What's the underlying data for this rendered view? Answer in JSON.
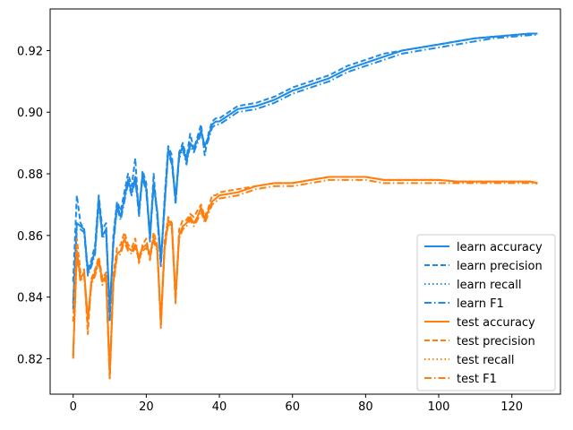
{
  "chart_data": {
    "type": "line",
    "title": "",
    "xlabel": "",
    "ylabel": "",
    "xlim": [
      -6.3,
      133.3
    ],
    "ylim": [
      0.8085,
      0.9335
    ],
    "x_ticks": [
      0,
      20,
      40,
      60,
      80,
      100,
      120
    ],
    "y_ticks": [
      0.82,
      0.84,
      0.86,
      0.88,
      0.9,
      0.92
    ],
    "y_tick_labels": [
      "0.82",
      "0.84",
      "0.86",
      "0.88",
      "0.90",
      "0.92"
    ],
    "grid": false,
    "legend_position": "lower right",
    "x": [
      0,
      1,
      2,
      3,
      4,
      5,
      6,
      7,
      8,
      9,
      10,
      11,
      12,
      13,
      14,
      15,
      16,
      17,
      18,
      19,
      20,
      21,
      22,
      23,
      24,
      25,
      26,
      27,
      28,
      29,
      30,
      31,
      32,
      33,
      34,
      35,
      36,
      37,
      38,
      39,
      40,
      45,
      50,
      55,
      60,
      65,
      70,
      75,
      80,
      85,
      90,
      95,
      100,
      105,
      110,
      115,
      120,
      125,
      127
    ],
    "series": [
      {
        "name": "learn accuracy",
        "color": "#1f8be8",
        "dash": "solid",
        "values": [
          0.838,
          0.864,
          0.863,
          0.862,
          0.848,
          0.851,
          0.855,
          0.872,
          0.86,
          0.862,
          0.836,
          0.858,
          0.87,
          0.866,
          0.872,
          0.878,
          0.874,
          0.879,
          0.868,
          0.88,
          0.875,
          0.86,
          0.877,
          0.868,
          0.852,
          0.87,
          0.888,
          0.884,
          0.872,
          0.886,
          0.889,
          0.884,
          0.89,
          0.888,
          0.891,
          0.894,
          0.889,
          0.892,
          0.896,
          0.897,
          0.897,
          0.901,
          0.902,
          0.904,
          0.907,
          0.909,
          0.911,
          0.914,
          0.916,
          0.918,
          0.92,
          0.921,
          0.922,
          0.923,
          0.924,
          0.9245,
          0.925,
          0.9255,
          0.9255
        ]
      },
      {
        "name": "learn precision",
        "color": "#1f8be8",
        "dash": "dashed",
        "values": [
          0.845,
          0.873,
          0.864,
          0.862,
          0.849,
          0.852,
          0.857,
          0.873,
          0.862,
          0.864,
          0.832,
          0.86,
          0.871,
          0.868,
          0.874,
          0.88,
          0.876,
          0.885,
          0.866,
          0.881,
          0.877,
          0.858,
          0.88,
          0.866,
          0.85,
          0.872,
          0.889,
          0.886,
          0.87,
          0.887,
          0.89,
          0.885,
          0.893,
          0.888,
          0.892,
          0.896,
          0.886,
          0.893,
          0.897,
          0.898,
          0.898,
          0.902,
          0.903,
          0.905,
          0.908,
          0.91,
          0.912,
          0.915,
          0.917,
          0.919,
          0.92,
          0.921,
          0.922,
          0.923,
          0.924,
          0.9245,
          0.925,
          0.9255,
          0.9255
        ]
      },
      {
        "name": "learn recall",
        "color": "#1f8be8",
        "dash": "dotted",
        "values": [
          0.838,
          0.864,
          0.863,
          0.862,
          0.848,
          0.851,
          0.855,
          0.872,
          0.86,
          0.862,
          0.836,
          0.858,
          0.87,
          0.866,
          0.872,
          0.878,
          0.874,
          0.879,
          0.868,
          0.88,
          0.875,
          0.86,
          0.877,
          0.868,
          0.852,
          0.87,
          0.888,
          0.884,
          0.872,
          0.886,
          0.889,
          0.884,
          0.89,
          0.888,
          0.891,
          0.894,
          0.889,
          0.892,
          0.896,
          0.897,
          0.897,
          0.901,
          0.902,
          0.904,
          0.907,
          0.909,
          0.911,
          0.914,
          0.916,
          0.918,
          0.92,
          0.921,
          0.922,
          0.923,
          0.924,
          0.9245,
          0.925,
          0.9255,
          0.9255
        ]
      },
      {
        "name": "learn F1",
        "color": "#1f8be8",
        "dash": "dashdot",
        "values": [
          0.836,
          0.862,
          0.862,
          0.861,
          0.847,
          0.85,
          0.854,
          0.871,
          0.859,
          0.861,
          0.834,
          0.857,
          0.869,
          0.865,
          0.871,
          0.877,
          0.873,
          0.878,
          0.867,
          0.879,
          0.874,
          0.859,
          0.876,
          0.867,
          0.851,
          0.869,
          0.887,
          0.883,
          0.871,
          0.885,
          0.888,
          0.883,
          0.889,
          0.887,
          0.89,
          0.893,
          0.888,
          0.891,
          0.895,
          0.896,
          0.896,
          0.9,
          0.901,
          0.903,
          0.906,
          0.908,
          0.91,
          0.913,
          0.915,
          0.917,
          0.919,
          0.92,
          0.921,
          0.922,
          0.923,
          0.924,
          0.9245,
          0.925,
          0.9252
        ]
      },
      {
        "name": "test accuracy",
        "color": "#ff7f0e",
        "dash": "solid",
        "values": [
          0.821,
          0.855,
          0.846,
          0.848,
          0.833,
          0.845,
          0.848,
          0.852,
          0.845,
          0.847,
          0.815,
          0.845,
          0.854,
          0.855,
          0.859,
          0.856,
          0.855,
          0.857,
          0.853,
          0.856,
          0.857,
          0.854,
          0.859,
          0.856,
          0.832,
          0.856,
          0.865,
          0.863,
          0.84,
          0.86,
          0.863,
          0.864,
          0.866,
          0.864,
          0.866,
          0.869,
          0.865,
          0.868,
          0.871,
          0.872,
          0.873,
          0.874,
          0.876,
          0.877,
          0.877,
          0.878,
          0.879,
          0.879,
          0.879,
          0.878,
          0.878,
          0.878,
          0.878,
          0.8775,
          0.8775,
          0.8775,
          0.8775,
          0.8775,
          0.877
        ]
      },
      {
        "name": "test precision",
        "color": "#ff7f0e",
        "dash": "dashed",
        "values": [
          0.832,
          0.859,
          0.848,
          0.849,
          0.828,
          0.846,
          0.849,
          0.853,
          0.846,
          0.848,
          0.814,
          0.847,
          0.856,
          0.857,
          0.861,
          0.857,
          0.856,
          0.859,
          0.851,
          0.857,
          0.859,
          0.852,
          0.861,
          0.857,
          0.83,
          0.858,
          0.866,
          0.864,
          0.838,
          0.862,
          0.865,
          0.865,
          0.867,
          0.866,
          0.868,
          0.87,
          0.866,
          0.869,
          0.873,
          0.873,
          0.874,
          0.875,
          0.876,
          0.877,
          0.877,
          0.878,
          0.879,
          0.879,
          0.879,
          0.878,
          0.878,
          0.878,
          0.878,
          0.8775,
          0.8775,
          0.8775,
          0.8775,
          0.8775,
          0.877
        ]
      },
      {
        "name": "test recall",
        "color": "#ff7f0e",
        "dash": "dotted",
        "values": [
          0.821,
          0.855,
          0.846,
          0.848,
          0.833,
          0.845,
          0.848,
          0.852,
          0.845,
          0.847,
          0.815,
          0.845,
          0.854,
          0.855,
          0.859,
          0.856,
          0.855,
          0.857,
          0.853,
          0.856,
          0.857,
          0.854,
          0.859,
          0.856,
          0.832,
          0.856,
          0.865,
          0.863,
          0.84,
          0.86,
          0.863,
          0.864,
          0.866,
          0.864,
          0.866,
          0.869,
          0.865,
          0.868,
          0.871,
          0.872,
          0.873,
          0.874,
          0.876,
          0.877,
          0.877,
          0.878,
          0.879,
          0.879,
          0.879,
          0.878,
          0.878,
          0.878,
          0.878,
          0.8775,
          0.8775,
          0.8775,
          0.8775,
          0.8775,
          0.877
        ]
      },
      {
        "name": "test F1",
        "color": "#ff7f0e",
        "dash": "dashdot",
        "values": [
          0.82,
          0.854,
          0.845,
          0.847,
          0.831,
          0.844,
          0.847,
          0.851,
          0.844,
          0.846,
          0.813,
          0.844,
          0.853,
          0.854,
          0.858,
          0.855,
          0.854,
          0.856,
          0.852,
          0.855,
          0.856,
          0.853,
          0.858,
          0.855,
          0.831,
          0.855,
          0.864,
          0.862,
          0.839,
          0.859,
          0.862,
          0.863,
          0.865,
          0.863,
          0.865,
          0.868,
          0.864,
          0.867,
          0.87,
          0.871,
          0.872,
          0.873,
          0.875,
          0.876,
          0.876,
          0.877,
          0.878,
          0.878,
          0.878,
          0.877,
          0.877,
          0.877,
          0.877,
          0.877,
          0.877,
          0.877,
          0.877,
          0.877,
          0.8768
        ]
      }
    ]
  }
}
